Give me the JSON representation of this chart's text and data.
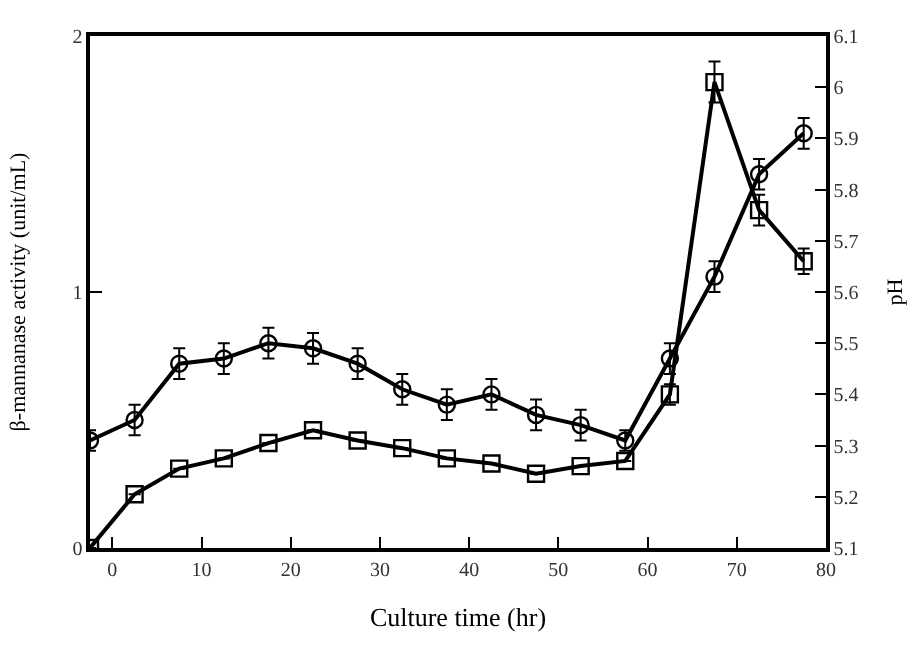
{
  "chart_data": {
    "type": "line",
    "xlabel": "Culture time (hr)",
    "ylabel": "β-mannanase activity (unit/mL)",
    "y2label": "pH",
    "x": [
      -2.5,
      2.5,
      7.5,
      12.5,
      17.5,
      22.5,
      27.5,
      32.5,
      37.5,
      42.5,
      47.5,
      52.5,
      57.5,
      62.5,
      67.5,
      72.5,
      77.5
    ],
    "series": [
      {
        "color": "#000000",
        "marker": "square",
        "values": [
          0,
          0.21,
          0.31,
          0.35,
          0.41,
          0.46,
          0.42,
          0.39,
          0.35,
          0.33,
          0.29,
          0.32,
          0.34,
          0.6,
          1.82,
          1.32,
          1.12
        ],
        "errors": [
          null,
          null,
          null,
          null,
          null,
          null,
          null,
          null,
          null,
          null,
          null,
          null,
          null,
          0.04,
          0.08,
          0.06,
          0.05
        ]
      },
      {
        "color": "#000000",
        "marker": "circle",
        "axis": "y2",
        "values": [
          5.31,
          5.35,
          5.46,
          5.47,
          5.5,
          5.49,
          5.46,
          5.41,
          5.38,
          5.4,
          5.36,
          5.34,
          5.31,
          5.47,
          5.63,
          5.83,
          5.91
        ],
        "errors": [
          0.02,
          0.03,
          0.03,
          0.03,
          0.03,
          0.03,
          0.03,
          0.03,
          0.03,
          0.03,
          0.03,
          0.03,
          0.02,
          0.03,
          0.03,
          0.03,
          0.03
        ]
      }
    ],
    "xlim": [
      -2.5,
      80
    ],
    "xticks": [
      0,
      10,
      20,
      30,
      40,
      50,
      60,
      70,
      80
    ],
    "ylim": [
      0,
      2
    ],
    "yticks": [
      0,
      1,
      2
    ],
    "y2lim": [
      5.1,
      6.1
    ],
    "y2ticks": [
      5.1,
      5.2,
      5.3,
      5.4,
      5.5,
      5.6,
      5.7,
      5.8,
      5.9,
      {
        "value": 6,
        "label": "6"
      },
      6.1
    ],
    "line_style": "solid"
  }
}
